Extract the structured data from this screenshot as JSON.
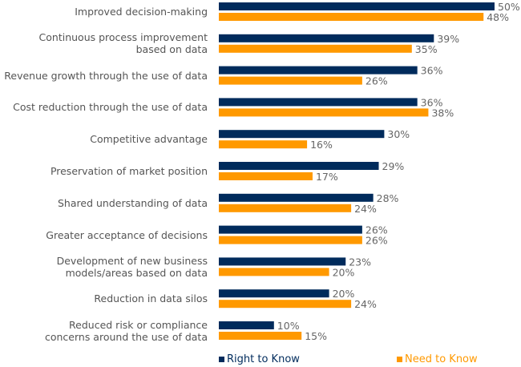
{
  "chart_data": {
    "type": "bar",
    "orientation": "horizontal",
    "categories": [
      "Improved decision-making",
      "Continuous process improvement\nbased on data",
      "Revenue growth through the use of data",
      "Cost reduction through the use of data",
      "Competitive advantage",
      "Preservation of market position",
      "Shared understanding of data",
      "Greater acceptance of decisions",
      "Development of new business\nmodels/areas based on data",
      "Reduction in data silos",
      "Reduced risk or compliance\nconcerns around the use of data"
    ],
    "series": [
      {
        "name": "Right to Know",
        "color": "#002b5c",
        "values": [
          50,
          39,
          36,
          36,
          30,
          29,
          28,
          26,
          23,
          20,
          10
        ]
      },
      {
        "name": "Need to Know",
        "color": "#ff9900",
        "values": [
          48,
          35,
          26,
          38,
          16,
          17,
          24,
          26,
          20,
          24,
          15
        ]
      }
    ],
    "value_suffix": "%",
    "xlim": [
      0,
      50
    ],
    "grid": false,
    "legend_placement": "bottom"
  }
}
